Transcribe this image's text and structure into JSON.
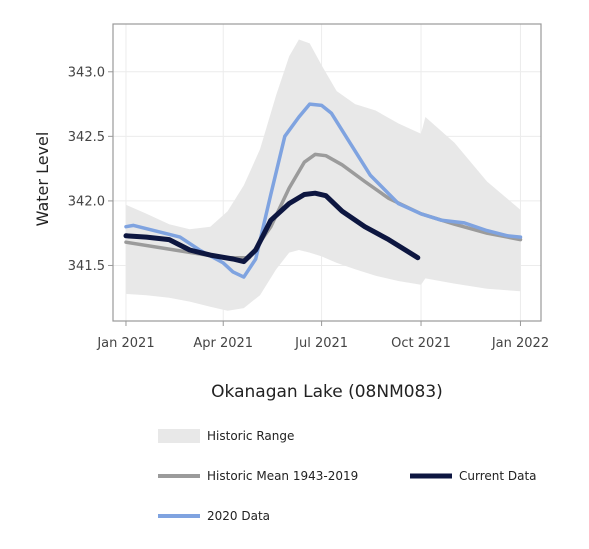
{
  "chart_data": {
    "type": "line",
    "title": "Okanagan Lake (08NM083)",
    "xlabel": "",
    "ylabel": "Water Level",
    "x_axis": {
      "type": "date",
      "range": [
        "2020-12-20",
        "2022-01-20"
      ],
      "ticks": [
        {
          "date": "2021-01-01",
          "label": "Jan 2021"
        },
        {
          "date": "2021-04-01",
          "label": "Apr 2021"
        },
        {
          "date": "2021-07-01",
          "label": "Jul 2021"
        },
        {
          "date": "2021-10-01",
          "label": "Oct 2021"
        },
        {
          "date": "2022-01-01",
          "label": "Jan 2022"
        }
      ]
    },
    "y_axis": {
      "range": [
        341.07,
        343.37
      ],
      "ticks": [
        341.5,
        342.0,
        342.5,
        343.0
      ],
      "tick_labels": [
        "341.5",
        "342.0",
        "342.5",
        "343.0"
      ]
    },
    "grid": true,
    "legend_position": "bottom",
    "series": [
      {
        "name": "Historic Range",
        "kind": "band",
        "color": "#e8e8e8",
        "points": [
          {
            "x": "2021-01-01",
            "low": 341.28,
            "high": 341.97
          },
          {
            "x": "2021-01-20",
            "low": 341.27,
            "high": 341.9
          },
          {
            "x": "2021-02-10",
            "low": 341.25,
            "high": 341.82
          },
          {
            "x": "2021-03-01",
            "low": 341.22,
            "high": 341.78
          },
          {
            "x": "2021-03-20",
            "low": 341.18,
            "high": 341.8
          },
          {
            "x": "2021-04-05",
            "low": 341.15,
            "high": 341.92
          },
          {
            "x": "2021-04-20",
            "low": 341.17,
            "high": 342.12
          },
          {
            "x": "2021-05-05",
            "low": 341.27,
            "high": 342.4
          },
          {
            "x": "2021-05-20",
            "low": 341.47,
            "high": 342.82
          },
          {
            "x": "2021-06-01",
            "low": 341.6,
            "high": 343.12
          },
          {
            "x": "2021-06-10",
            "low": 341.62,
            "high": 343.25
          },
          {
            "x": "2021-06-20",
            "low": 341.6,
            "high": 343.22
          },
          {
            "x": "2021-07-01",
            "low": 341.57,
            "high": 343.05
          },
          {
            "x": "2021-07-15",
            "low": 341.52,
            "high": 342.85
          },
          {
            "x": "2021-08-01",
            "low": 341.47,
            "high": 342.75
          },
          {
            "x": "2021-08-20",
            "low": 341.42,
            "high": 342.7
          },
          {
            "x": "2021-09-10",
            "low": 341.38,
            "high": 342.6
          },
          {
            "x": "2021-10-01",
            "low": 341.35,
            "high": 342.52
          },
          {
            "x": "2021-10-05",
            "low": 341.4,
            "high": 342.65
          },
          {
            "x": "2021-11-01",
            "low": 341.36,
            "high": 342.45
          },
          {
            "x": "2021-12-01",
            "low": 341.32,
            "high": 342.15
          },
          {
            "x": "2022-01-01",
            "low": 341.3,
            "high": 341.93
          }
        ]
      },
      {
        "name": "Historic Mean 1943-2019",
        "kind": "line",
        "color": "#9b9b9b",
        "points": [
          {
            "x": "2021-01-01",
            "y": 341.68
          },
          {
            "x": "2021-02-15",
            "y": 341.62
          },
          {
            "x": "2021-04-01",
            "y": 341.56
          },
          {
            "x": "2021-04-25",
            "y": 341.56
          },
          {
            "x": "2021-05-15",
            "y": 341.8
          },
          {
            "x": "2021-06-01",
            "y": 342.1
          },
          {
            "x": "2021-06-15",
            "y": 342.3
          },
          {
            "x": "2021-06-25",
            "y": 342.36
          },
          {
            "x": "2021-07-05",
            "y": 342.35
          },
          {
            "x": "2021-07-20",
            "y": 342.28
          },
          {
            "x": "2021-08-10",
            "y": 342.15
          },
          {
            "x": "2021-09-01",
            "y": 342.02
          },
          {
            "x": "2021-10-01",
            "y": 341.9
          },
          {
            "x": "2021-11-01",
            "y": 341.82
          },
          {
            "x": "2021-12-01",
            "y": 341.75
          },
          {
            "x": "2022-01-01",
            "y": 341.7
          }
        ]
      },
      {
        "name": "2020 Data",
        "kind": "line",
        "color": "#7fa3e0",
        "points": [
          {
            "x": "2021-01-01",
            "y": 341.8
          },
          {
            "x": "2021-01-08",
            "y": 341.81
          },
          {
            "x": "2021-02-01",
            "y": 341.76
          },
          {
            "x": "2021-02-20",
            "y": 341.72
          },
          {
            "x": "2021-03-10",
            "y": 341.62
          },
          {
            "x": "2021-04-01",
            "y": 341.52
          },
          {
            "x": "2021-04-10",
            "y": 341.45
          },
          {
            "x": "2021-04-20",
            "y": 341.41
          },
          {
            "x": "2021-05-01",
            "y": 341.55
          },
          {
            "x": "2021-05-15",
            "y": 342.05
          },
          {
            "x": "2021-05-28",
            "y": 342.5
          },
          {
            "x": "2021-06-10",
            "y": 342.65
          },
          {
            "x": "2021-06-20",
            "y": 342.75
          },
          {
            "x": "2021-07-01",
            "y": 342.74
          },
          {
            "x": "2021-07-10",
            "y": 342.68
          },
          {
            "x": "2021-07-25",
            "y": 342.48
          },
          {
            "x": "2021-08-15",
            "y": 342.2
          },
          {
            "x": "2021-09-10",
            "y": 341.98
          },
          {
            "x": "2021-10-01",
            "y": 341.9
          },
          {
            "x": "2021-10-20",
            "y": 341.85
          },
          {
            "x": "2021-11-10",
            "y": 341.83
          },
          {
            "x": "2021-12-01",
            "y": 341.77
          },
          {
            "x": "2021-12-20",
            "y": 341.73
          },
          {
            "x": "2022-01-01",
            "y": 341.72
          }
        ]
      },
      {
        "name": "Current Data",
        "kind": "line",
        "color": "#0d1640",
        "points": [
          {
            "x": "2021-01-01",
            "y": 341.73
          },
          {
            "x": "2021-01-20",
            "y": 341.72
          },
          {
            "x": "2021-02-10",
            "y": 341.7
          },
          {
            "x": "2021-03-01",
            "y": 341.62
          },
          {
            "x": "2021-03-20",
            "y": 341.58
          },
          {
            "x": "2021-04-10",
            "y": 341.55
          },
          {
            "x": "2021-04-20",
            "y": 341.53
          },
          {
            "x": "2021-05-01",
            "y": 341.62
          },
          {
            "x": "2021-05-15",
            "y": 341.85
          },
          {
            "x": "2021-06-01",
            "y": 341.98
          },
          {
            "x": "2021-06-15",
            "y": 342.05
          },
          {
            "x": "2021-06-25",
            "y": 342.06
          },
          {
            "x": "2021-07-05",
            "y": 342.04
          },
          {
            "x": "2021-07-20",
            "y": 341.92
          },
          {
            "x": "2021-08-10",
            "y": 341.8
          },
          {
            "x": "2021-09-01",
            "y": 341.7
          },
          {
            "x": "2021-09-28",
            "y": 341.56
          }
        ]
      }
    ],
    "legend": [
      {
        "series": "Historic Range",
        "swatch": "band",
        "color": "#e8e8e8"
      },
      {
        "series": "Historic Mean 1943-2019",
        "swatch": "line",
        "color": "#9b9b9b"
      },
      {
        "series": "Current Data",
        "swatch": "line",
        "color": "#0d1640"
      },
      {
        "series": "2020 Data",
        "swatch": "line",
        "color": "#7fa3e0"
      }
    ]
  }
}
